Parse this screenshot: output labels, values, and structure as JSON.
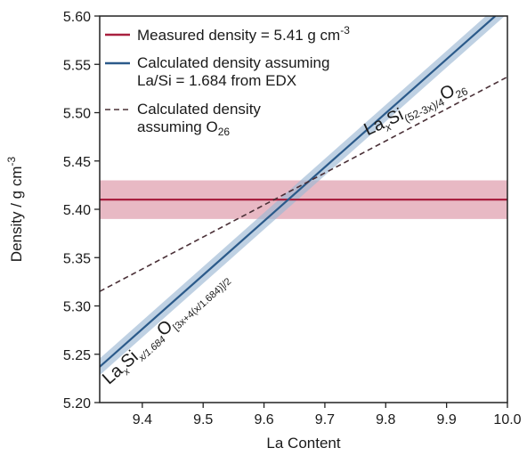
{
  "chart_data": {
    "type": "line",
    "xlabel": "La Content",
    "ylabel": "Density / g cm",
    "ylabel_sup": "-3",
    "xlim": [
      9.33,
      10.0
    ],
    "ylim": [
      5.2,
      5.6
    ],
    "xticks": [
      9.4,
      9.5,
      9.6,
      9.7,
      9.8,
      9.9,
      10.0
    ],
    "xtick_labels": [
      "9.4",
      "9.5",
      "9.6",
      "9.7",
      "9.8",
      "9.9",
      "10.0"
    ],
    "yticks": [
      5.2,
      5.25,
      5.3,
      5.35,
      5.4,
      5.45,
      5.5,
      5.55,
      5.6
    ],
    "ytick_labels": [
      "5.20",
      "5.25",
      "5.30",
      "5.35",
      "5.40",
      "5.45",
      "5.50",
      "5.55",
      "5.60"
    ],
    "grid": false,
    "legend_position": "top-left",
    "series": [
      {
        "key": "measured",
        "legend": [
          "Measured density = 5.41 g cm",
          "-3"
        ],
        "color": "#a8203f",
        "band_color": "#d98a9c",
        "style": "solid",
        "x": [
          9.33,
          10.0
        ],
        "y": [
          5.41,
          5.41
        ],
        "band_lower": [
          5.39,
          5.39
        ],
        "band_upper": [
          5.43,
          5.43
        ]
      },
      {
        "key": "calculated_edx",
        "legend": [
          "Calculated density assuming",
          "La/Si = 1.684 from EDX"
        ],
        "color": "#2b5a8a",
        "band_color": "#9cb8d4",
        "style": "solid",
        "x": [
          9.33,
          9.98
        ],
        "y": [
          5.237,
          5.6
        ],
        "band_halfwidth": 0.01
      },
      {
        "key": "calculated_o26",
        "legend": [
          "Calculated density",
          "assuming O",
          "26"
        ],
        "color": "#4a3037",
        "style": "dashed",
        "x": [
          9.33,
          10.0
        ],
        "y": [
          5.315,
          5.537
        ]
      }
    ],
    "annotations": [
      {
        "key": "o26_formula",
        "parts": [
          {
            "t": "La",
            "s": "n"
          },
          {
            "t": "x",
            "s": "sub-i"
          },
          {
            "t": "Si",
            "s": "n"
          },
          {
            "t": "(52-3x)/4",
            "s": "sub"
          },
          {
            "t": "O",
            "s": "n"
          },
          {
            "t": "26",
            "s": "sub"
          }
        ],
        "x": 9.77,
        "y": 5.476
      },
      {
        "key": "edx_formula",
        "parts": [
          {
            "t": "La",
            "s": "n"
          },
          {
            "t": "x",
            "s": "sub-i"
          },
          {
            "t": "Si",
            "s": "n"
          },
          {
            "t": "x/1.684",
            "s": "sub-i"
          },
          {
            "t": "O",
            "s": "n"
          },
          {
            "t": "[3x+4(x/1.684)]/2",
            "s": "sub"
          }
        ],
        "x": 9.345,
        "y": 5.218
      }
    ]
  }
}
